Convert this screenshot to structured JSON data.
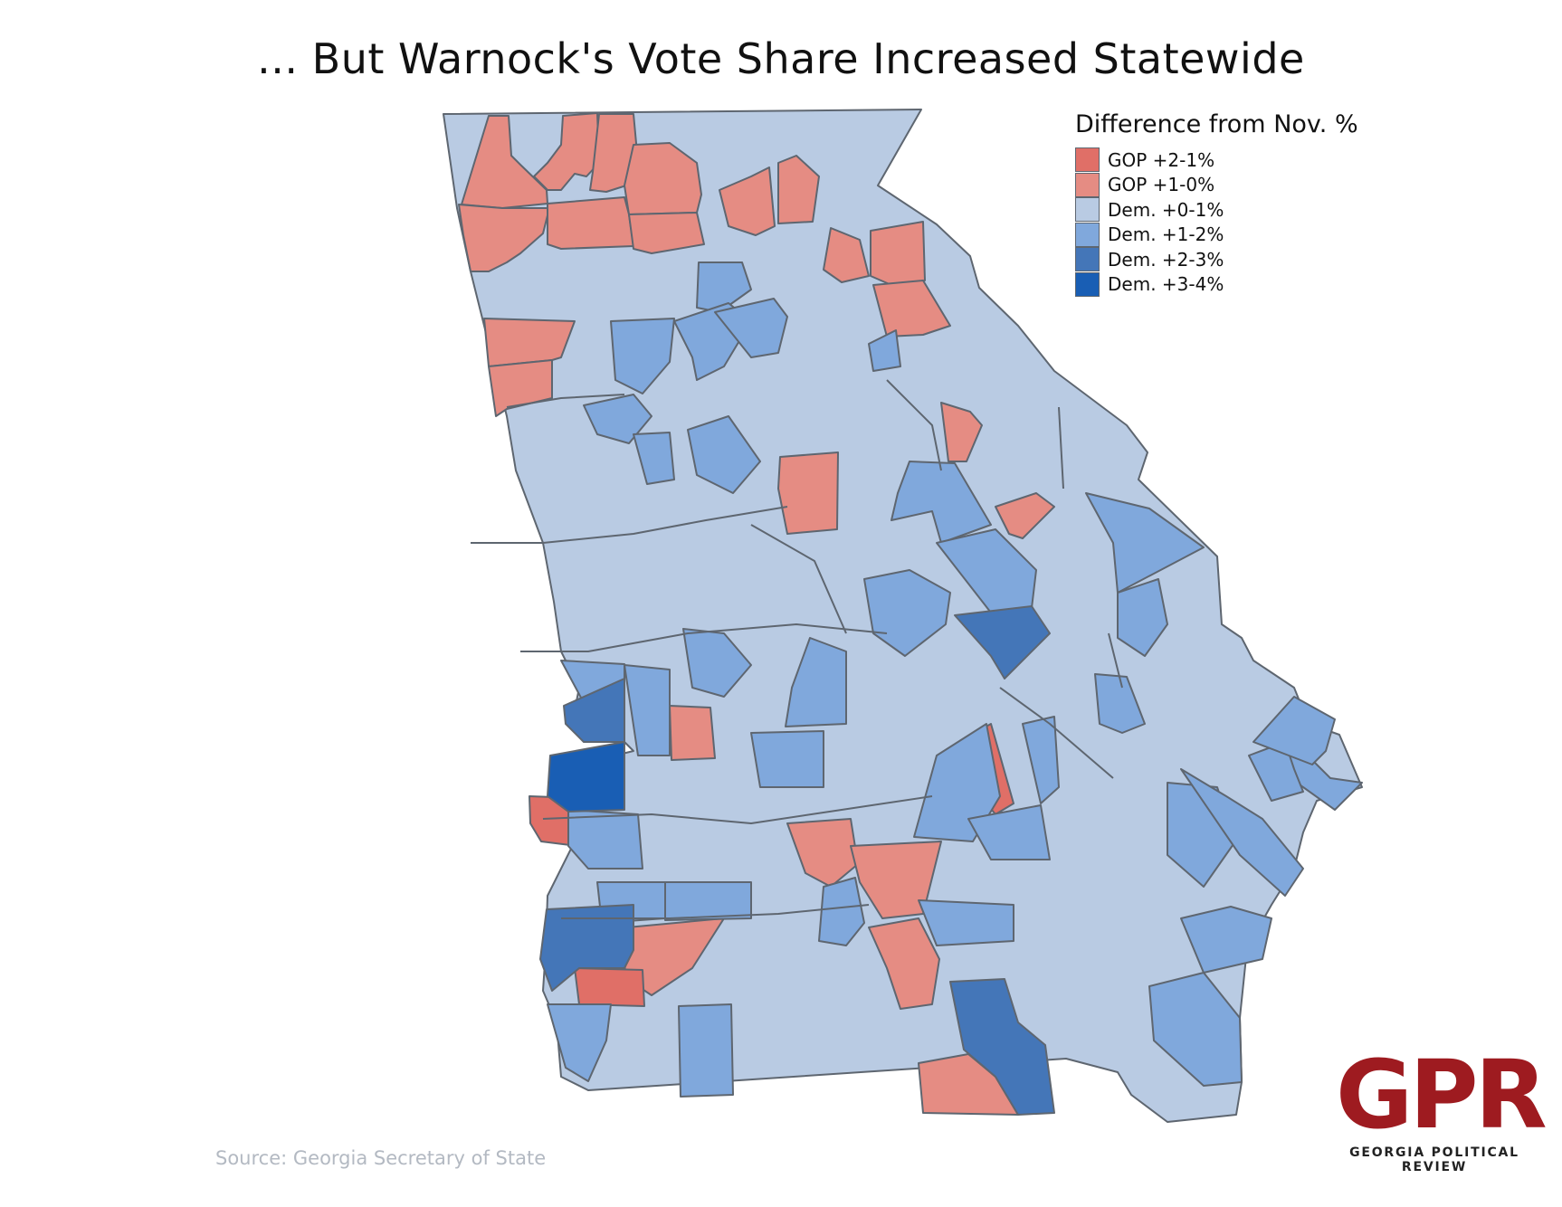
{
  "title": "... But Warnock's Vote Share Increased Statewide",
  "legend": {
    "title": "Difference from Nov. %",
    "items": [
      {
        "label": "GOP +2-1%",
        "color": "#e06f67"
      },
      {
        "label": "GOP +1-0%",
        "color": "#e58c83"
      },
      {
        "label": "Dem. +0-1%",
        "color": "#b9cbe3"
      },
      {
        "label": "Dem. +1-2%",
        "color": "#80a8dc"
      },
      {
        "label": "Dem. +2-3%",
        "color": "#4476b8"
      },
      {
        "label": "Dem. +3-4%",
        "color": "#195eb4"
      }
    ]
  },
  "source": "Source: Georgia Secretary of State",
  "logo": {
    "mark": "GPR",
    "subtitle": "GEORGIA POLITICAL REVIEW",
    "color": "#9e1b20"
  },
  "map": {
    "region": "Georgia counties",
    "border_color": "#5e6670",
    "base_color": "#b9cbe3"
  }
}
